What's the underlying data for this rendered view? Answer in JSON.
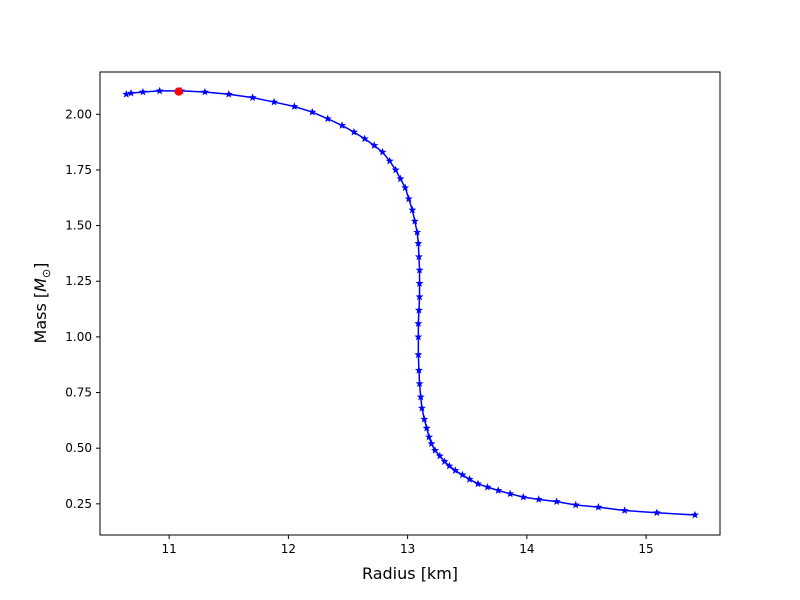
{
  "chart_data": {
    "type": "line",
    "xlabel": "Radius [km]",
    "ylabel_main": "Mass [",
    "ylabel_symbol": "M",
    "ylabel_subscript": "⊙",
    "ylabel_close": "]",
    "xlim": [
      10.42,
      15.62
    ],
    "ylim": [
      0.11,
      2.19
    ],
    "xticks": [
      11,
      12,
      13,
      14,
      15
    ],
    "xtick_labels": [
      "11",
      "12",
      "13",
      "14",
      "15"
    ],
    "yticks": [
      0.25,
      0.5,
      0.75,
      1.0,
      1.25,
      1.5,
      1.75,
      2.0
    ],
    "ytick_labels": [
      "0.25",
      "0.50",
      "0.75",
      "1.00",
      "1.25",
      "1.50",
      "1.75",
      "2.00"
    ],
    "grid": false,
    "series": [
      {
        "color": "#0000ff",
        "marker": "star",
        "x": [
          15.41,
          15.09,
          14.82,
          14.6,
          14.41,
          14.25,
          14.1,
          13.97,
          13.86,
          13.76,
          13.67,
          13.59,
          13.52,
          13.46,
          13.4,
          13.35,
          13.31,
          13.27,
          13.23,
          13.2,
          13.18,
          13.16,
          13.14,
          13.12,
          13.11,
          13.1,
          13.095,
          13.09,
          13.09,
          13.09,
          13.095,
          13.1,
          13.1,
          13.1,
          13.095,
          13.09,
          13.08,
          13.06,
          13.04,
          13.01,
          12.98,
          12.94,
          12.9,
          12.85,
          12.79,
          12.72,
          12.64,
          12.55,
          12.45,
          12.33,
          12.2,
          12.05,
          11.88,
          11.7,
          11.5,
          11.3,
          11.1,
          10.92,
          10.78,
          10.68,
          10.64
        ],
        "y": [
          0.2,
          0.21,
          0.22,
          0.235,
          0.245,
          0.26,
          0.27,
          0.28,
          0.295,
          0.31,
          0.325,
          0.34,
          0.36,
          0.38,
          0.4,
          0.42,
          0.44,
          0.465,
          0.49,
          0.52,
          0.55,
          0.59,
          0.63,
          0.68,
          0.73,
          0.79,
          0.85,
          0.92,
          1.0,
          1.06,
          1.12,
          1.18,
          1.24,
          1.3,
          1.36,
          1.42,
          1.47,
          1.52,
          1.57,
          1.62,
          1.67,
          1.71,
          1.75,
          1.79,
          1.83,
          1.86,
          1.89,
          1.92,
          1.95,
          1.98,
          2.01,
          2.035,
          2.055,
          2.075,
          2.09,
          2.1,
          2.105,
          2.105,
          2.1,
          2.095,
          2.09
        ]
      }
    ],
    "highlight_point": {
      "x": 11.08,
      "y": 2.102,
      "color": "#ff0000"
    }
  }
}
